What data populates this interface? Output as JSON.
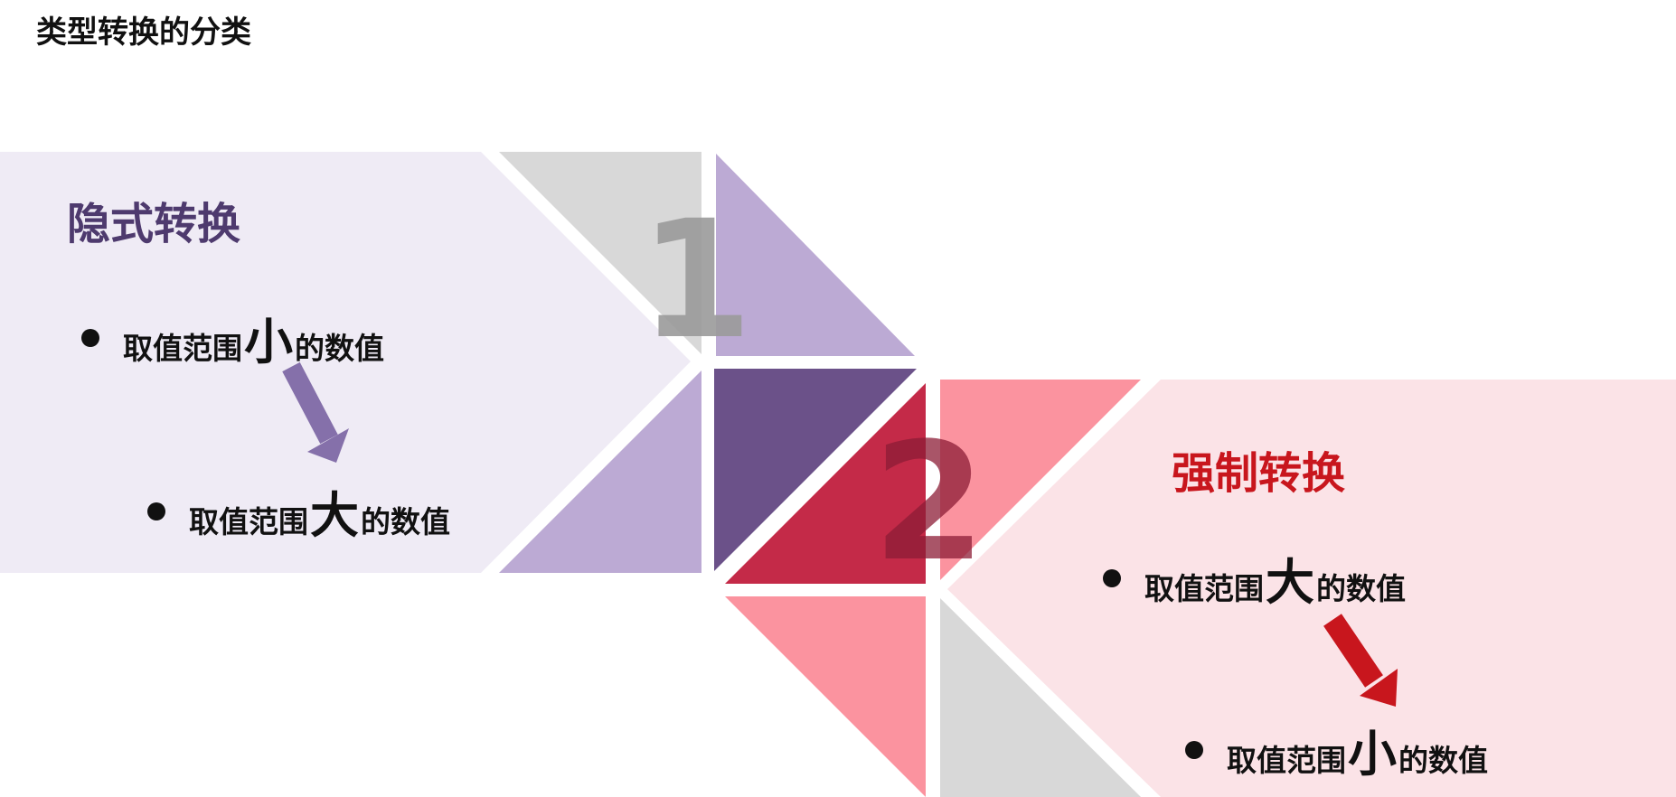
{
  "page_title": "类型转换的分类",
  "implicit": {
    "title": "隐式转换",
    "number": "1",
    "from": {
      "prefix": "取值范围",
      "emphasis": "小",
      "suffix": "的数值"
    },
    "to": {
      "prefix": "取值范围",
      "emphasis": "大",
      "suffix": "的数值"
    }
  },
  "explicit": {
    "title": "强制转换",
    "number": "2",
    "from": {
      "prefix": "取值范围",
      "emphasis": "大",
      "suffix": "的数值"
    },
    "to": {
      "prefix": "取值范围",
      "emphasis": "小",
      "suffix": "的数值"
    }
  },
  "colors": {
    "implicit_panel": "#efebf5",
    "implicit_title": "#4e3a6e",
    "purple_light": "#bcaad4",
    "purple_dark": "#6b5189",
    "purple_arrow": "#8570aa",
    "explicit_panel": "#fbe3e7",
    "explicit_title": "#c8161d",
    "pink": "#fb939f",
    "crimson": "#c42a48",
    "red_arrow": "#c8161d",
    "gray": "#d8d8d8",
    "number_implicit": "#9a9a9a",
    "number_explicit": "#8c1c36"
  }
}
